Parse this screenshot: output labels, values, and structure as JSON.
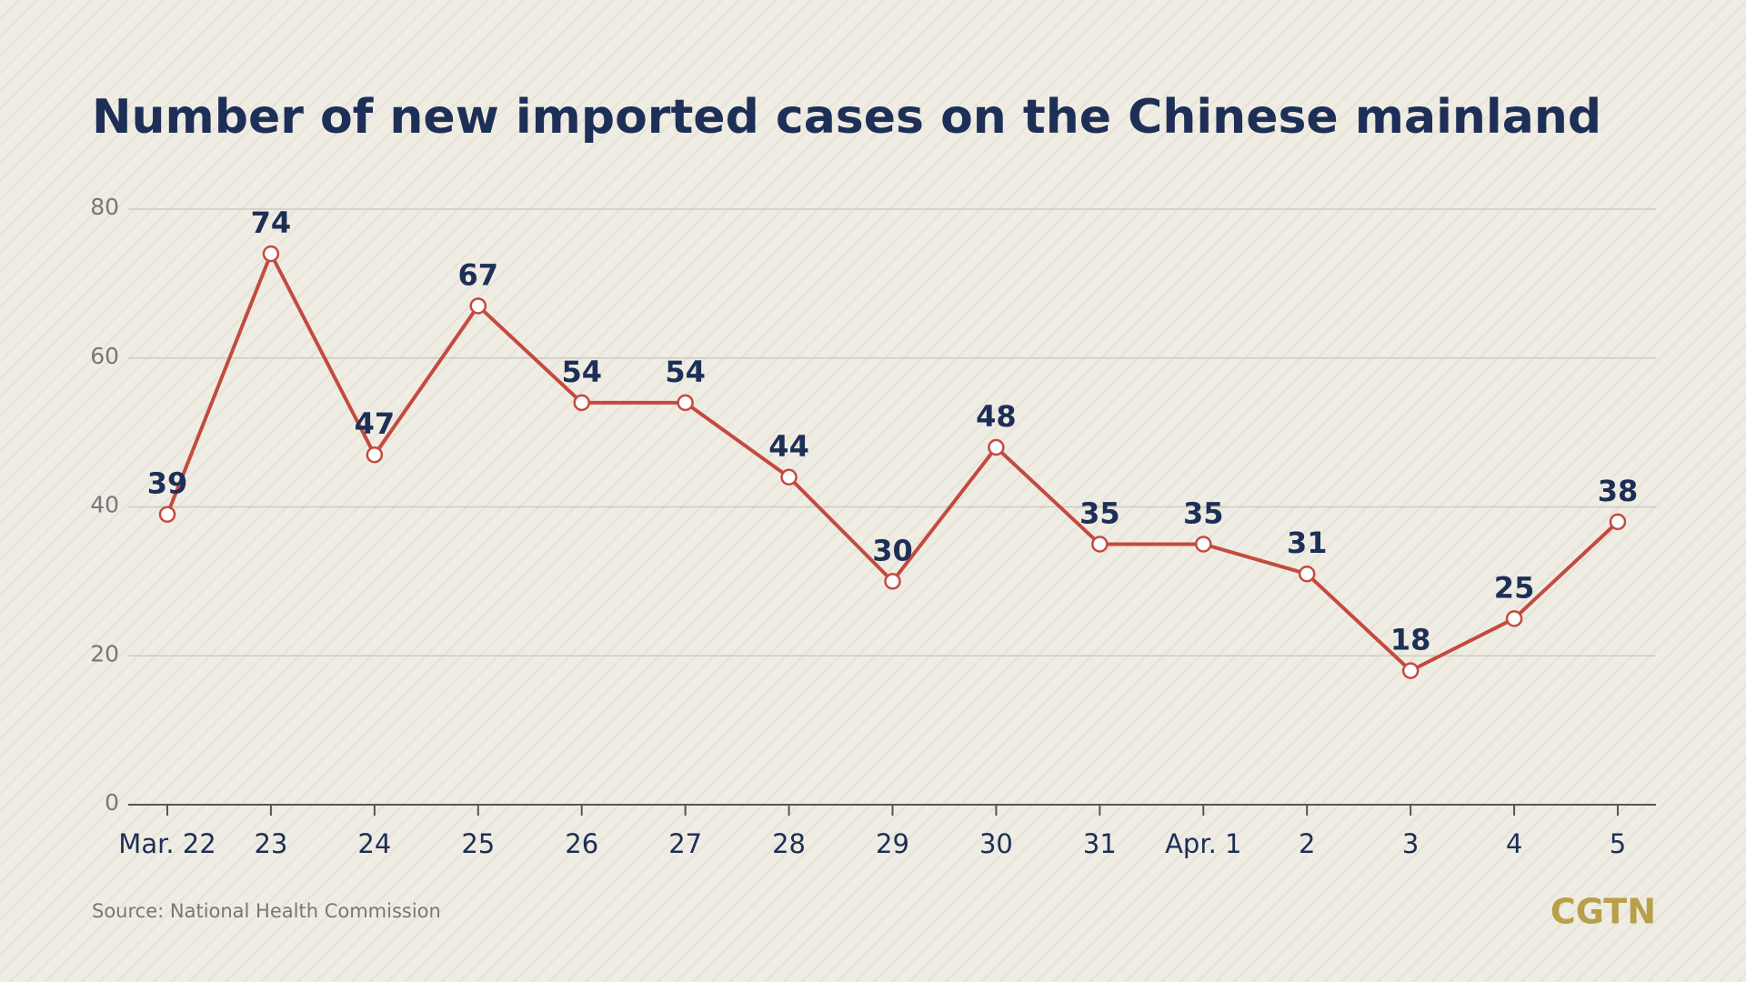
{
  "chart_data": {
    "type": "line",
    "title": "Number of new imported cases on the Chinese mainland",
    "source": "Source: National Health Commission",
    "logo": "CGTN",
    "categories": [
      "Mar. 22",
      "23",
      "24",
      "25",
      "26",
      "27",
      "28",
      "29",
      "30",
      "31",
      "Apr. 1",
      "2",
      "3",
      "4",
      "5"
    ],
    "series": [
      {
        "name": "New imported cases",
        "color": "#c44a40",
        "values": [
          39,
          74,
          47,
          67,
          54,
          54,
          44,
          30,
          48,
          35,
          35,
          31,
          18,
          25,
          38
        ]
      }
    ],
    "ylim": [
      0,
      80
    ],
    "yticks": [
      0,
      20,
      40,
      60,
      80
    ],
    "grid": true
  }
}
